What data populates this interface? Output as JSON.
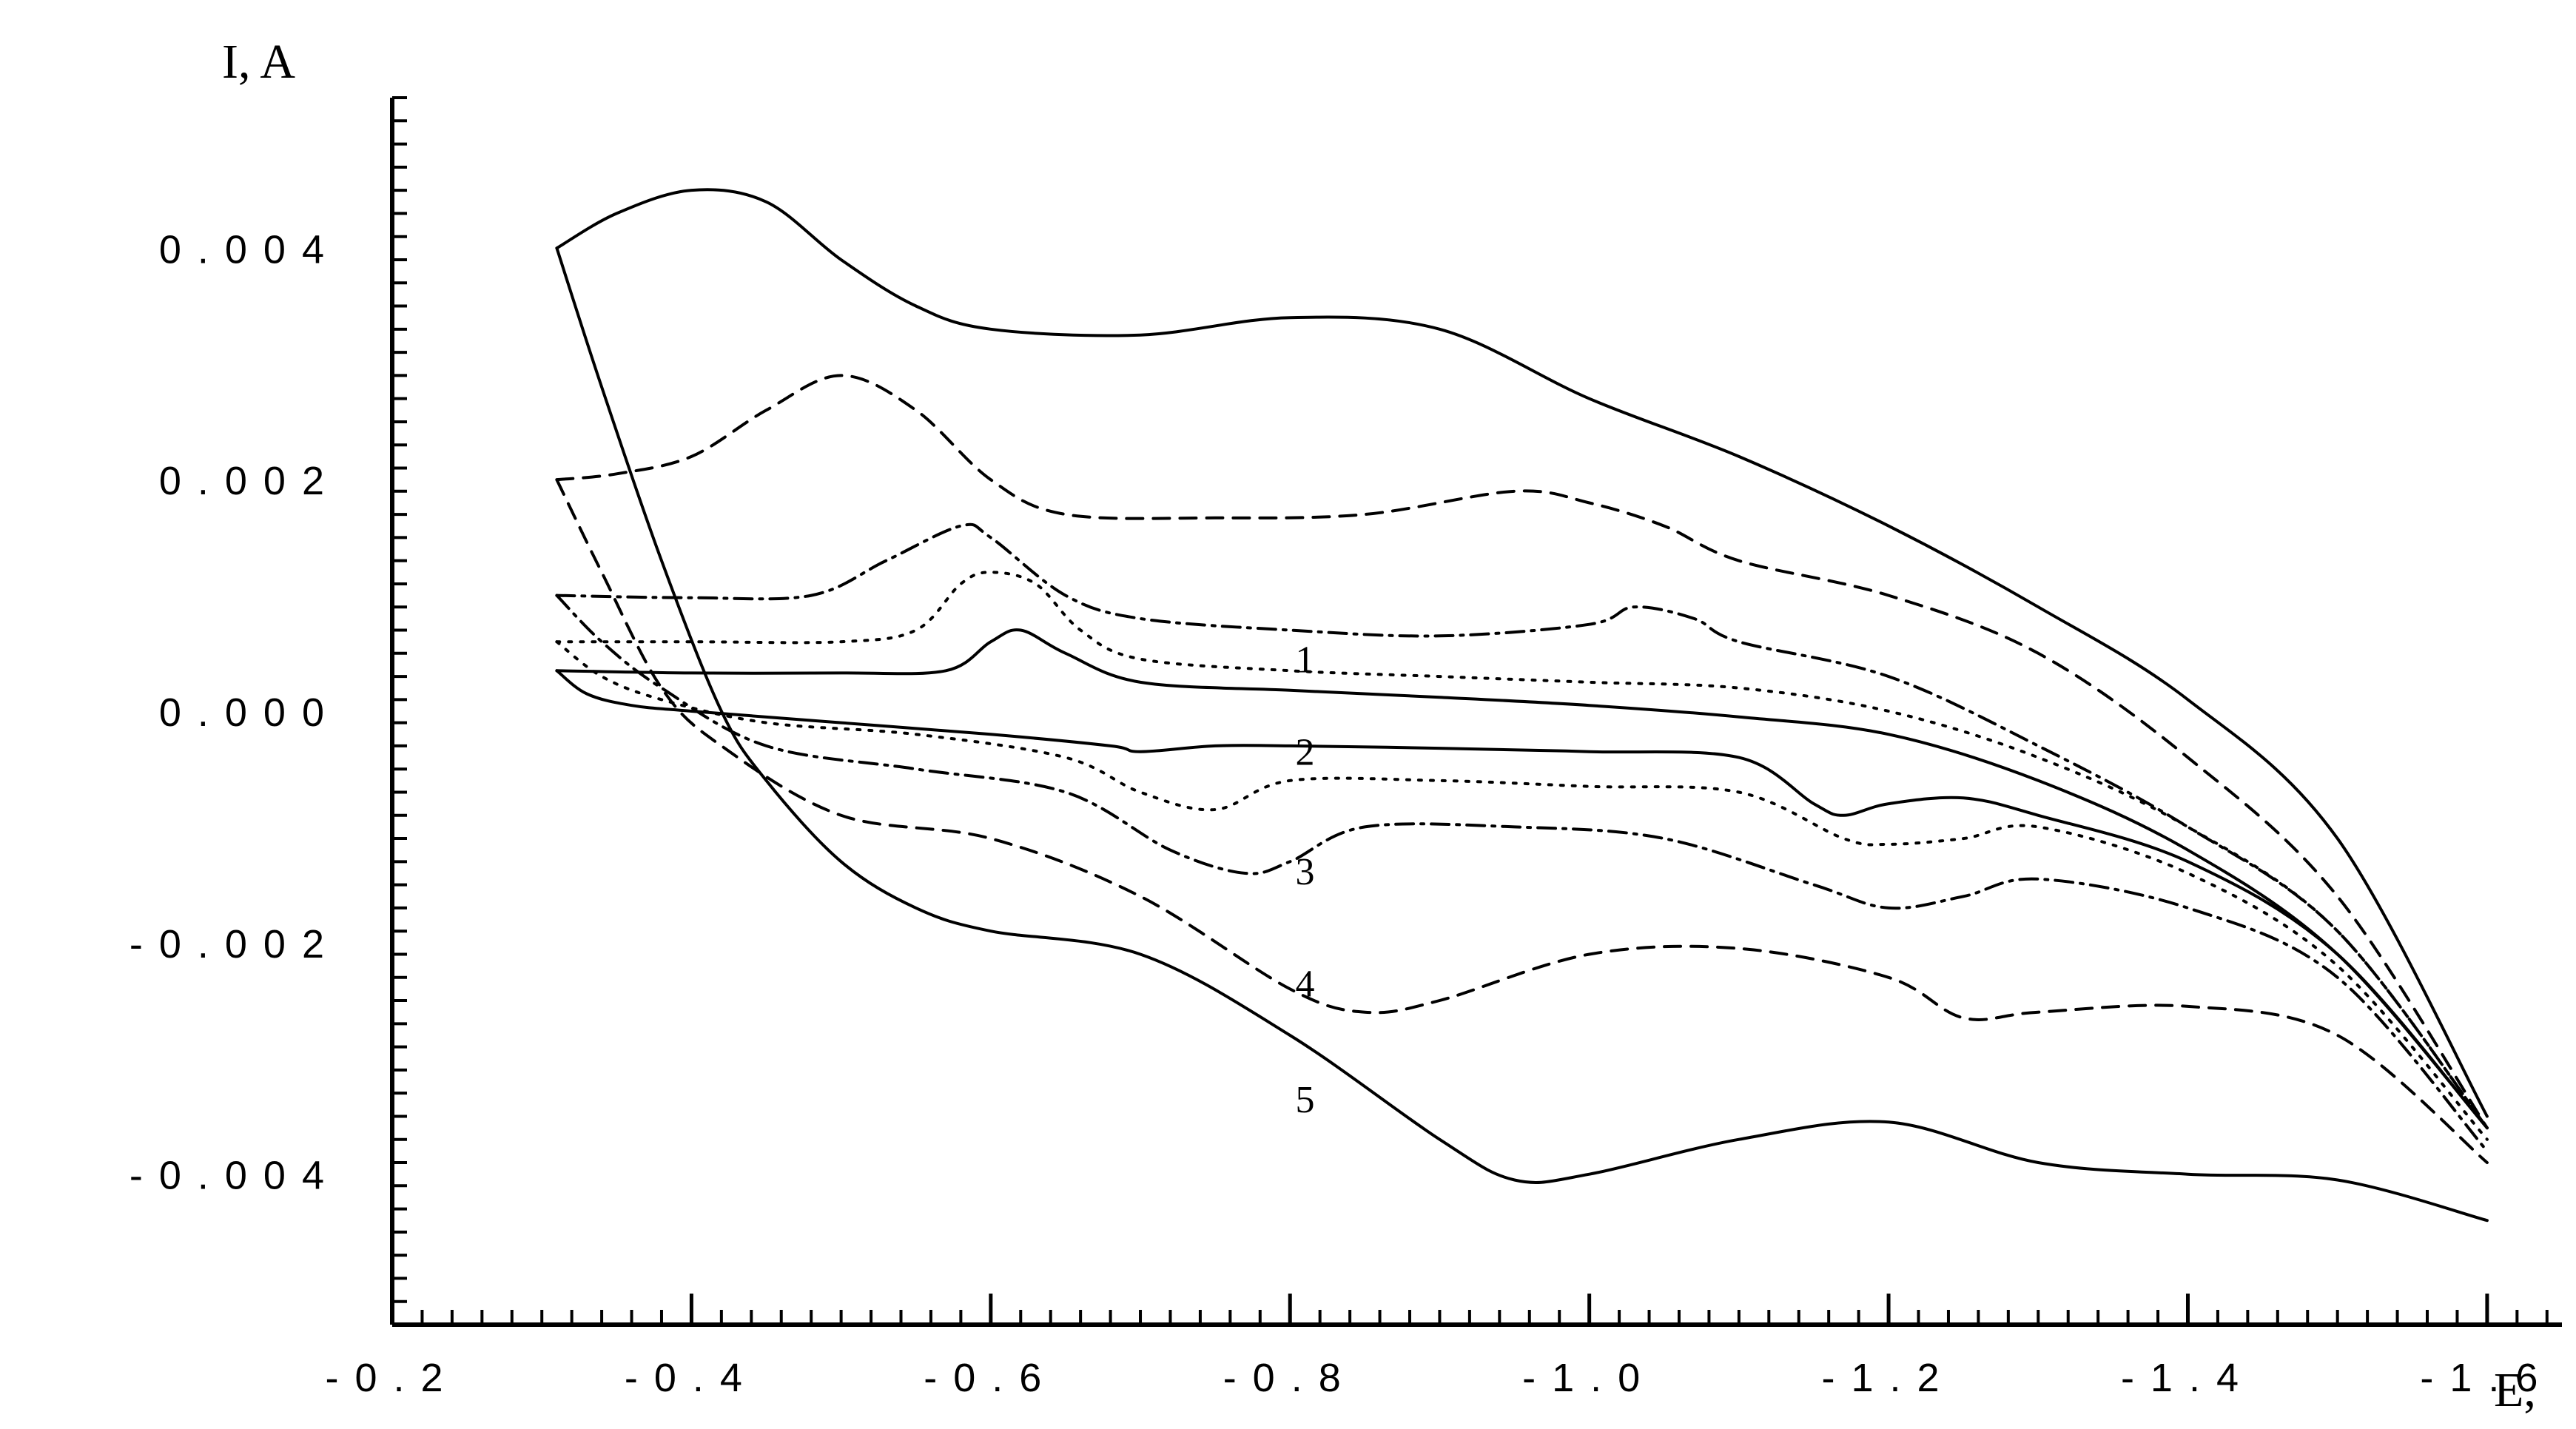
{
  "chart_data": {
    "type": "line",
    "title": "",
    "xlabel": "E,",
    "ylabel": "I, A",
    "xlim": [
      -0.2,
      -1.65
    ],
    "ylim": [
      0.0053,
      -0.0053
    ],
    "x_ticks": [
      -0.2,
      -0.4,
      -0.6,
      -0.8,
      -1.0,
      -1.2,
      -1.4,
      -1.6
    ],
    "x_tick_labels": [
      "-0.2",
      "-0.4",
      "-0.6",
      "-0.8",
      "-1.0",
      "-1.2",
      "-1.4",
      "-1.6"
    ],
    "y_ticks": [
      -0.004,
      -0.002,
      0.0,
      0.002,
      0.004
    ],
    "y_tick_labels": [
      "-0.004",
      "-0.002",
      "0.000",
      "0.002",
      "0.004"
    ],
    "grid": false,
    "legend": "none",
    "series": [
      {
        "label": "1",
        "style": "solid",
        "label_at": [
          -0.81,
          0.00045
        ],
        "upper": [
          [
            -0.31,
            0.00035
          ],
          [
            -0.33,
            0.00015
          ],
          [
            -0.36,
            5e-05
          ],
          [
            -0.4,
            0.0
          ],
          [
            -0.5,
            -0.0001
          ],
          [
            -0.6,
            -0.0002
          ],
          [
            -0.68,
            -0.0003
          ],
          [
            -0.7,
            -0.00035
          ],
          [
            -0.75,
            -0.0003
          ],
          [
            -0.8,
            -0.0003
          ],
          [
            -0.9,
            -0.00032
          ],
          [
            -1.0,
            -0.00035
          ],
          [
            -1.1,
            -0.0004
          ],
          [
            -1.15,
            -0.0008
          ],
          [
            -1.17,
            -0.0009
          ],
          [
            -1.2,
            -0.0008
          ],
          [
            -1.25,
            -0.00075
          ],
          [
            -1.3,
            -0.0009
          ],
          [
            -1.4,
            -0.0013
          ],
          [
            -1.5,
            -0.0021
          ],
          [
            -1.6,
            -0.0036
          ]
        ],
        "lower": [
          [
            -0.31,
            0.00035
          ],
          [
            -0.4,
            0.00033
          ],
          [
            -0.5,
            0.00033
          ],
          [
            -0.57,
            0.00035
          ],
          [
            -0.6,
            0.0006
          ],
          [
            -0.62,
            0.0007
          ],
          [
            -0.65,
            0.0005
          ],
          [
            -0.7,
            0.00025
          ],
          [
            -0.8,
            0.00018
          ],
          [
            -0.9,
            0.00012
          ],
          [
            -1.0,
            5e-05
          ],
          [
            -1.1,
            -5e-05
          ],
          [
            -1.2,
            -0.0002
          ],
          [
            -1.3,
            -0.0006
          ],
          [
            -1.4,
            -0.0012
          ],
          [
            -1.5,
            -0.0021
          ],
          [
            -1.6,
            -0.0036
          ]
        ]
      },
      {
        "label": "2",
        "style": "dotted",
        "label_at": [
          -0.81,
          -0.00035
        ],
        "upper": [
          [
            -0.31,
            0.0006
          ],
          [
            -0.34,
            0.0003
          ],
          [
            -0.38,
            0.0001
          ],
          [
            -0.45,
            -0.0001
          ],
          [
            -0.55,
            -0.0002
          ],
          [
            -0.65,
            -0.0004
          ],
          [
            -0.7,
            -0.0007
          ],
          [
            -0.75,
            -0.00085
          ],
          [
            -0.8,
            -0.0006
          ],
          [
            -0.9,
            -0.0006
          ],
          [
            -1.0,
            -0.00065
          ],
          [
            -1.1,
            -0.0007
          ],
          [
            -1.17,
            -0.0011
          ],
          [
            -1.2,
            -0.00115
          ],
          [
            -1.25,
            -0.0011
          ],
          [
            -1.3,
            -0.001
          ],
          [
            -1.4,
            -0.0014
          ],
          [
            -1.5,
            -0.0022
          ],
          [
            -1.6,
            -0.0037
          ]
        ],
        "lower": [
          [
            -0.31,
            0.0006
          ],
          [
            -0.4,
            0.0006
          ],
          [
            -0.5,
            0.0006
          ],
          [
            -0.55,
            0.0007
          ],
          [
            -0.58,
            0.0011
          ],
          [
            -0.6,
            0.0012
          ],
          [
            -0.63,
            0.0011
          ],
          [
            -0.66,
            0.0007
          ],
          [
            -0.7,
            0.00045
          ],
          [
            -0.8,
            0.00035
          ],
          [
            -0.9,
            0.0003
          ],
          [
            -1.0,
            0.00025
          ],
          [
            -1.1,
            0.0002
          ],
          [
            -1.2,
            0.0
          ],
          [
            -1.3,
            -0.0004
          ],
          [
            -1.4,
            -0.001
          ],
          [
            -1.5,
            -0.0019
          ],
          [
            -1.6,
            -0.0036
          ]
        ]
      },
      {
        "label": "3",
        "style": "dashdot",
        "label_at": [
          -0.81,
          -0.00138
        ],
        "upper": [
          [
            -0.31,
            0.001
          ],
          [
            -0.34,
            0.0006
          ],
          [
            -0.38,
            0.0002
          ],
          [
            -0.45,
            -0.0003
          ],
          [
            -0.55,
            -0.0005
          ],
          [
            -0.65,
            -0.0007
          ],
          [
            -0.72,
            -0.0012
          ],
          [
            -0.77,
            -0.0014
          ],
          [
            -0.8,
            -0.0013
          ],
          [
            -0.85,
            -0.001
          ],
          [
            -0.95,
            -0.001
          ],
          [
            -1.05,
            -0.0011
          ],
          [
            -1.15,
            -0.0015
          ],
          [
            -1.2,
            -0.0017
          ],
          [
            -1.25,
            -0.0016
          ],
          [
            -1.3,
            -0.00145
          ],
          [
            -1.4,
            -0.0017
          ],
          [
            -1.5,
            -0.0023
          ],
          [
            -1.6,
            -0.0038
          ]
        ],
        "lower": [
          [
            -0.31,
            0.001
          ],
          [
            -0.4,
            0.00098
          ],
          [
            -0.48,
            0.001
          ],
          [
            -0.53,
            0.0013
          ],
          [
            -0.58,
            0.0016
          ],
          [
            -0.6,
            0.0015
          ],
          [
            -0.65,
            0.001
          ],
          [
            -0.7,
            0.0008
          ],
          [
            -0.8,
            0.0007
          ],
          [
            -0.9,
            0.00065
          ],
          [
            -1.0,
            0.00075
          ],
          [
            -1.03,
            0.0009
          ],
          [
            -1.07,
            0.0008
          ],
          [
            -1.1,
            0.0006
          ],
          [
            -1.2,
            0.0003
          ],
          [
            -1.3,
            -0.0003
          ],
          [
            -1.4,
            -0.001
          ],
          [
            -1.5,
            -0.0019
          ],
          [
            -1.6,
            -0.0036
          ]
        ]
      },
      {
        "label": "4",
        "style": "dashed",
        "label_at": [
          -0.81,
          -0.00235
        ],
        "upper": [
          [
            -0.31,
            0.002
          ],
          [
            -0.34,
            0.0012
          ],
          [
            -0.38,
            0.0002
          ],
          [
            -0.42,
            -0.0003
          ],
          [
            -0.5,
            -0.0009
          ],
          [
            -0.6,
            -0.0011
          ],
          [
            -0.7,
            -0.0016
          ],
          [
            -0.8,
            -0.0024
          ],
          [
            -0.85,
            -0.0026
          ],
          [
            -0.9,
            -0.0025
          ],
          [
            -1.0,
            -0.0021
          ],
          [
            -1.1,
            -0.00205
          ],
          [
            -1.2,
            -0.0023
          ],
          [
            -1.25,
            -0.00265
          ],
          [
            -1.3,
            -0.0026
          ],
          [
            -1.4,
            -0.00255
          ],
          [
            -1.5,
            -0.0028
          ],
          [
            -1.6,
            -0.0039
          ]
        ],
        "lower": [
          [
            -0.31,
            0.002
          ],
          [
            -0.35,
            0.00205
          ],
          [
            -0.4,
            0.0022
          ],
          [
            -0.45,
            0.0026
          ],
          [
            -0.5,
            0.0029
          ],
          [
            -0.55,
            0.0026
          ],
          [
            -0.6,
            0.002
          ],
          [
            -0.65,
            0.0017
          ],
          [
            -0.75,
            0.00167
          ],
          [
            -0.85,
            0.0017
          ],
          [
            -0.95,
            0.0019
          ],
          [
            -1.0,
            0.0018
          ],
          [
            -1.05,
            0.0016
          ],
          [
            -1.1,
            0.0013
          ],
          [
            -1.2,
            0.001
          ],
          [
            -1.3,
            0.0005
          ],
          [
            -1.4,
            -0.0004
          ],
          [
            -1.5,
            -0.0016
          ],
          [
            -1.6,
            -0.0036
          ]
        ]
      },
      {
        "label": "5",
        "style": "solid",
        "label_at": [
          -0.81,
          -0.00335
        ],
        "upper": [
          [
            -0.31,
            0.004
          ],
          [
            -0.34,
            0.0028
          ],
          [
            -0.38,
            0.0013
          ],
          [
            -0.42,
            0.0
          ],
          [
            -0.45,
            -0.0006
          ],
          [
            -0.5,
            -0.0013
          ],
          [
            -0.55,
            -0.0017
          ],
          [
            -0.6,
            -0.0019
          ],
          [
            -0.7,
            -0.0021
          ],
          [
            -0.8,
            -0.0028
          ],
          [
            -0.9,
            -0.0037
          ],
          [
            -0.95,
            -0.00405
          ],
          [
            -1.0,
            -0.004
          ],
          [
            -1.1,
            -0.0037
          ],
          [
            -1.2,
            -0.00355
          ],
          [
            -1.3,
            -0.0039
          ],
          [
            -1.4,
            -0.004
          ],
          [
            -1.5,
            -0.00405
          ],
          [
            -1.6,
            -0.0044
          ]
        ],
        "lower": [
          [
            -0.31,
            0.004
          ],
          [
            -0.35,
            0.0043
          ],
          [
            -0.4,
            0.0045
          ],
          [
            -0.45,
            0.0044
          ],
          [
            -0.5,
            0.0039
          ],
          [
            -0.55,
            0.0035
          ],
          [
            -0.6,
            0.0033
          ],
          [
            -0.7,
            0.00325
          ],
          [
            -0.8,
            0.0034
          ],
          [
            -0.9,
            0.0033
          ],
          [
            -1.0,
            0.0027
          ],
          [
            -1.1,
            0.0022
          ],
          [
            -1.2,
            0.0016
          ],
          [
            -1.3,
            0.0009
          ],
          [
            -1.4,
            0.0001
          ],
          [
            -1.5,
            -0.0011
          ],
          [
            -1.6,
            -0.0035
          ]
        ]
      }
    ]
  }
}
